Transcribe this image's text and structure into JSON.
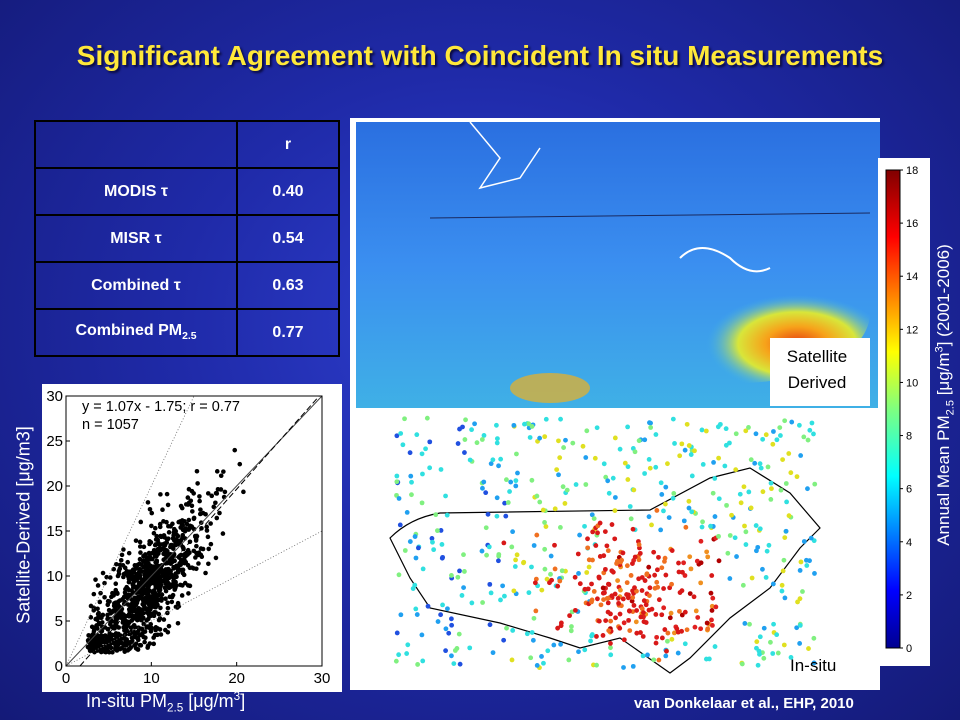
{
  "title": "Significant Agreement with Coincident In situ Measurements",
  "table": {
    "header": [
      "",
      "r"
    ],
    "rows": [
      {
        "label": "MODIS τ",
        "value": "0.40"
      },
      {
        "label": "MISR τ",
        "value": "0.54"
      },
      {
        "label": "Combined τ",
        "value": "0.63"
      },
      {
        "label_main": "Combined PM",
        "label_sub": "2.5",
        "value": "0.77"
      }
    ]
  },
  "scatter": {
    "annotation_line1": "y = 1.07x - 1.75; r = 0.77",
    "annotation_line2": "n = 1057",
    "xlabel_main": "In-situ PM",
    "xlabel_sub": "2.5",
    "xlabel_unit_open": " [μg/m",
    "xlabel_unit_sup": "3",
    "xlabel_unit_close": "]",
    "ylabel": "Satellite-Derived [μg/m3]"
  },
  "chart_data": {
    "type": "scatter",
    "xlim": [
      0,
      30
    ],
    "ylim": [
      0,
      30
    ],
    "xticks": [
      0,
      10,
      20,
      30
    ],
    "yticks": [
      0,
      5,
      10,
      15,
      20,
      25,
      30
    ],
    "fit": {
      "slope": 1.07,
      "intercept": -1.75
    },
    "one_to_one": true,
    "n": 1057,
    "r": 0.77
  },
  "maps": {
    "top_caption_line1": "Satellite",
    "top_caption_line2": "Derived",
    "bottom_caption": "In-situ"
  },
  "colorbar": {
    "ticks": [
      0,
      2,
      4,
      6,
      8,
      10,
      12,
      14,
      16,
      18
    ],
    "min": 0,
    "max": 18,
    "label_main": "Annual Mean PM",
    "label_sub": "2.5",
    "label_unit_open": " [μg/m",
    "label_unit_sup": "3",
    "label_unit_close": "] (2001-2006)"
  },
  "credit": "van Donkelaar et al., EHP, 2010"
}
